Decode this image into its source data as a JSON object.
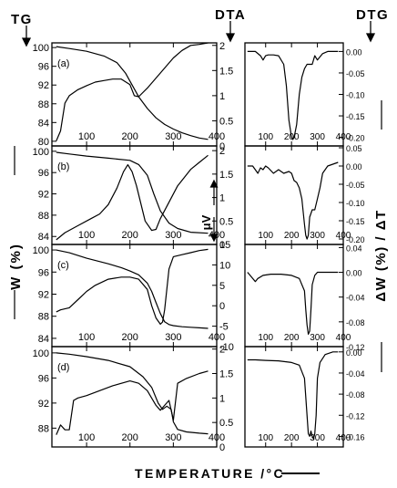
{
  "header": {
    "tg": "TG",
    "dta": "DTA",
    "dtg": "DTG"
  },
  "axis_labels": {
    "w_pct": "W  (%)",
    "xlabel": "TEMPERATURE /°C",
    "uv": "μV",
    "dw_dt": "ΔW (%) / ΔT"
  },
  "colors": {
    "line": "#000000",
    "background": "#ffffff"
  },
  "chart_data": [
    {
      "panel": "a",
      "type": "line",
      "label": "(a)",
      "xticks": [
        100,
        200,
        300,
        400
      ],
      "xlim": [
        20,
        400
      ],
      "left_axis": {
        "name": "TG",
        "ylim": [
          79,
          101
        ],
        "ticks": [
          100,
          96,
          92,
          88,
          84,
          80
        ]
      },
      "right_axis": {
        "name": "DTA",
        "ylim": [
          0,
          2.05
        ],
        "ticks": [
          2.0,
          1.5,
          1.0,
          0.5,
          0.0
        ]
      },
      "series": [
        {
          "axis": "left",
          "x": [
            30,
            60,
            100,
            140,
            170,
            190,
            205,
            220,
            240,
            260,
            280,
            300,
            320,
            340,
            360,
            380
          ],
          "y": [
            100.2,
            99.8,
            99.2,
            98.2,
            96.8,
            94.5,
            92.0,
            89.5,
            87.0,
            85.0,
            83.6,
            82.6,
            81.8,
            81.2,
            80.7,
            80.4
          ]
        },
        {
          "axis": "right",
          "x": [
            30,
            40,
            50,
            60,
            80,
            100,
            120,
            140,
            160,
            180,
            200,
            210,
            220,
            240,
            260,
            280,
            300,
            320,
            340,
            360,
            380
          ],
          "y": [
            0.1,
            0.3,
            0.85,
            1.0,
            1.12,
            1.2,
            1.27,
            1.3,
            1.33,
            1.33,
            1.22,
            1.0,
            0.98,
            1.15,
            1.35,
            1.55,
            1.75,
            1.9,
            2.0,
            2.02,
            2.05
          ]
        }
      ]
    },
    {
      "panel": "a",
      "type": "line",
      "side": "dtg",
      "xticks": [
        100,
        200,
        300,
        400
      ],
      "xlim": [
        20,
        400
      ],
      "yaxis": {
        "ylim": [
          -0.22,
          0.02
        ],
        "ticks": [
          "0.00",
          "-0.05",
          "-0.10",
          "-0.15",
          "-0.20"
        ]
      },
      "series": [
        {
          "x": [
            30,
            60,
            80,
            90,
            100,
            110,
            130,
            150,
            170,
            180,
            190,
            200,
            205,
            210,
            220,
            230,
            240,
            250,
            260,
            270,
            280,
            290,
            300,
            320,
            340,
            360,
            380
          ],
          "y": [
            0.0,
            0.0,
            -0.01,
            -0.02,
            -0.01,
            -0.008,
            -0.008,
            -0.01,
            -0.03,
            -0.08,
            -0.16,
            -0.2,
            -0.205,
            -0.2,
            -0.17,
            -0.1,
            -0.06,
            -0.04,
            -0.03,
            -0.03,
            -0.03,
            -0.01,
            -0.02,
            -0.005,
            0.0,
            0.0,
            0.0
          ]
        }
      ]
    },
    {
      "panel": "b",
      "type": "line",
      "label": "(b)",
      "xticks": [
        100,
        200,
        300,
        400
      ],
      "xlim": [
        20,
        400
      ],
      "left_axis": {
        "name": "TG",
        "ylim": [
          82.5,
          101
        ],
        "ticks": [
          100,
          96,
          92,
          88,
          84
        ]
      },
      "right_axis": {
        "name": "DTA",
        "ylim": [
          0,
          2.1
        ],
        "ticks": [
          2.0,
          1.5,
          1.0,
          0.5,
          0.0
        ]
      },
      "series": [
        {
          "axis": "left",
          "x": [
            30,
            60,
            100,
            150,
            200,
            220,
            240,
            255,
            270,
            290,
            310,
            340,
            380
          ],
          "y": [
            99.8,
            99.5,
            99.1,
            98.7,
            98.3,
            97.5,
            95.5,
            92.0,
            88.8,
            86.5,
            85.5,
            84.8,
            84.6
          ]
        },
        {
          "axis": "right",
          "x": [
            30,
            50,
            80,
            110,
            130,
            150,
            170,
            185,
            195,
            205,
            215,
            235,
            250,
            260,
            270,
            290,
            310,
            340,
            360,
            380
          ],
          "y": [
            0.1,
            0.25,
            0.4,
            0.55,
            0.65,
            0.85,
            1.2,
            1.55,
            1.7,
            1.55,
            1.25,
            0.5,
            0.3,
            0.32,
            0.55,
            0.9,
            1.25,
            1.6,
            1.75,
            1.9
          ]
        }
      ]
    },
    {
      "panel": "b",
      "type": "line",
      "side": "dtg",
      "xticks": [
        100,
        200,
        300,
        400
      ],
      "xlim": [
        20,
        400
      ],
      "yaxis": {
        "ylim": [
          -0.215,
          0.055
        ],
        "ticks": [
          "0.05",
          "0.00",
          "-0.05",
          "-0.10",
          "-0.15",
          "-0.20"
        ]
      },
      "series": [
        {
          "x": [
            30,
            50,
            70,
            80,
            90,
            100,
            110,
            130,
            150,
            170,
            190,
            200,
            210,
            220,
            230,
            240,
            250,
            255,
            260,
            265,
            270,
            280,
            290,
            300,
            310,
            320,
            340,
            360,
            380
          ],
          "y": [
            0.0,
            0.0,
            -0.02,
            -0.005,
            -0.01,
            0.0,
            -0.005,
            -0.02,
            -0.01,
            -0.02,
            -0.015,
            -0.02,
            -0.04,
            -0.045,
            -0.06,
            -0.09,
            -0.16,
            -0.19,
            -0.2,
            -0.19,
            -0.14,
            -0.12,
            -0.12,
            -0.09,
            -0.06,
            -0.02,
            0.0,
            0.005,
            0.01
          ]
        }
      ]
    },
    {
      "panel": "c",
      "type": "line",
      "label": "(c)",
      "xticks": [
        100,
        200,
        300,
        400
      ],
      "xlim": [
        20,
        400
      ],
      "left_axis": {
        "name": "TG",
        "ylim": [
          82.5,
          101
        ],
        "ticks": [
          100,
          96,
          92,
          88,
          84
        ]
      },
      "right_axis": {
        "name": "DTA",
        "ylim": [
          -10,
          15
        ],
        "ticks": [
          "15",
          "10",
          "5",
          "0",
          "-5",
          "-10"
        ]
      },
      "series": [
        {
          "axis": "left",
          "x": [
            30,
            60,
            100,
            150,
            180,
            200,
            220,
            240,
            250,
            260,
            270,
            280,
            290,
            300,
            320,
            340,
            360,
            380
          ],
          "y": [
            100.0,
            99.5,
            98.5,
            97.5,
            96.8,
            96.2,
            95.5,
            94.0,
            92.5,
            90.5,
            88.5,
            87.0,
            86.5,
            86.3,
            86.1,
            86.0,
            85.9,
            85.8
          ]
        },
        {
          "axis": "right",
          "x": [
            30,
            40,
            60,
            80,
            100,
            120,
            150,
            180,
            200,
            220,
            240,
            250,
            260,
            270,
            275,
            280,
            290,
            300,
            320,
            340,
            360,
            380
          ],
          "y": [
            -1.5,
            -1.0,
            -0.5,
            1.5,
            3.5,
            5.0,
            6.5,
            7.0,
            7.0,
            6.5,
            4.0,
            0.0,
            -3.0,
            -4.5,
            -4.0,
            -1.0,
            9.0,
            12.0,
            12.5,
            13.0,
            13.5,
            13.8
          ]
        }
      ]
    },
    {
      "panel": "c",
      "type": "line",
      "side": "dtg",
      "xticks": [
        100,
        200,
        300,
        400
      ],
      "xlim": [
        20,
        400
      ],
      "yaxis": {
        "ylim": [
          -0.12,
          0.045
        ],
        "ticks": [
          "0.04",
          "0.00",
          "-0.04",
          "-0.08",
          "-0.12"
        ]
      },
      "series": [
        {
          "x": [
            30,
            40,
            50,
            60,
            70,
            90,
            120,
            160,
            200,
            230,
            250,
            255,
            260,
            265,
            270,
            275,
            280,
            290,
            300,
            320,
            340,
            360,
            380
          ],
          "y": [
            0.0,
            -0.005,
            -0.01,
            -0.015,
            -0.01,
            -0.005,
            -0.003,
            -0.003,
            -0.005,
            -0.01,
            -0.03,
            -0.06,
            -0.085,
            -0.1,
            -0.095,
            -0.06,
            -0.02,
            -0.005,
            0.0,
            0.0,
            0.0,
            0.0,
            0.0
          ]
        }
      ]
    },
    {
      "panel": "d",
      "type": "line",
      "label": "(d)",
      "xticks": [
        100,
        200,
        300,
        400
      ],
      "xlim": [
        20,
        400
      ],
      "left_axis": {
        "name": "TG",
        "ylim": [
          85,
          101
        ],
        "ticks": [
          100,
          96,
          92,
          88
        ]
      },
      "right_axis": {
        "name": "DTA",
        "ylim": [
          0,
          2.05
        ],
        "ticks": [
          2.0,
          1.5,
          1.0,
          0.5,
          0.0
        ]
      },
      "series": [
        {
          "axis": "left",
          "x": [
            30,
            60,
            100,
            150,
            200,
            230,
            250,
            265,
            275,
            285,
            295,
            300,
            310,
            330,
            360,
            380
          ],
          "y": [
            100.0,
            99.8,
            99.4,
            98.8,
            97.8,
            96.2,
            94.5,
            92.0,
            91.0,
            91.5,
            91.0,
            89.0,
            87.8,
            87.4,
            87.2,
            87.1
          ]
        },
        {
          "axis": "right",
          "x": [
            30,
            40,
            50,
            60,
            70,
            80,
            100,
            130,
            160,
            200,
            220,
            240,
            260,
            270,
            280,
            290,
            300,
            310,
            330,
            360,
            380
          ],
          "y": [
            0.25,
            0.45,
            0.35,
            0.35,
            0.95,
            1.0,
            1.05,
            1.15,
            1.25,
            1.35,
            1.3,
            1.15,
            0.85,
            0.75,
            0.85,
            0.95,
            0.55,
            1.3,
            1.4,
            1.5,
            1.55
          ]
        }
      ]
    },
    {
      "panel": "d",
      "type": "line",
      "side": "dtg",
      "xticks": [
        100,
        200,
        300,
        400
      ],
      "xlim": [
        20,
        400
      ],
      "yaxis": {
        "ylim": [
          -0.18,
          0.01
        ],
        "ticks": [
          "0.00",
          "-0.04",
          "-0.08",
          "-0.12",
          "-0.16"
        ]
      },
      "series": [
        {
          "x": [
            30,
            60,
            100,
            150,
            200,
            230,
            250,
            260,
            265,
            270,
            275,
            280,
            285,
            290,
            295,
            300,
            310,
            330,
            360,
            380
          ],
          "y": [
            -0.015,
            -0.015,
            -0.016,
            -0.017,
            -0.02,
            -0.025,
            -0.05,
            -0.12,
            -0.155,
            -0.16,
            -0.15,
            -0.16,
            -0.165,
            -0.155,
            -0.12,
            -0.05,
            -0.02,
            -0.005,
            0.0,
            0.0
          ]
        }
      ]
    }
  ]
}
